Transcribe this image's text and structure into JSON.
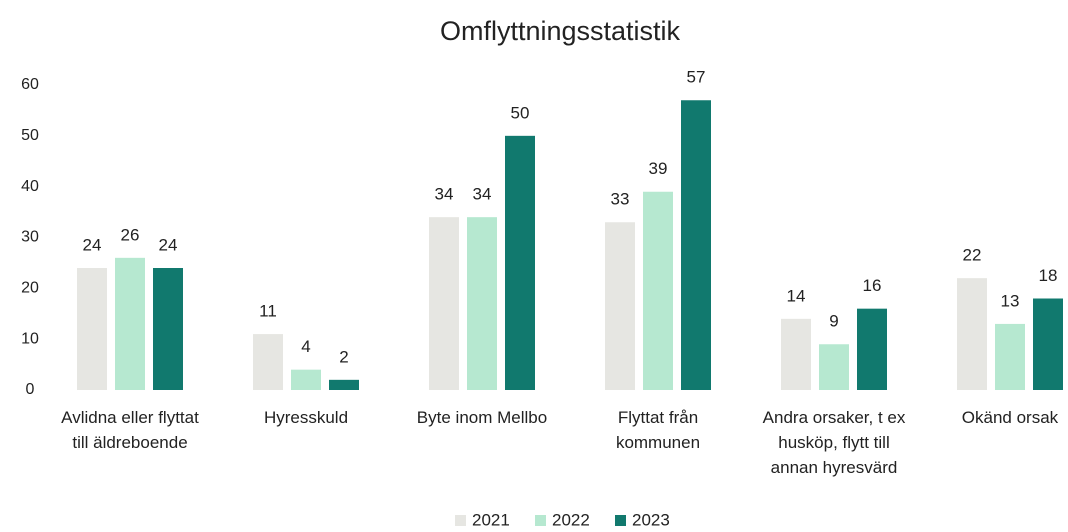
{
  "chart_data": {
    "type": "bar",
    "title": "Omflyttningsstatistik",
    "categories": [
      "Avlidna eller flyttat till äldreboende",
      "Hyresskuld",
      "Byte inom Mellbo",
      "Flyttat från kommunen",
      "Andra orsaker, t ex husköp, flytt till annan hyresvärd",
      "Okänd orsak"
    ],
    "series": [
      {
        "name": "2021",
        "color": "#e6e6e2",
        "values": [
          24,
          11,
          34,
          33,
          14,
          22
        ]
      },
      {
        "name": "2022",
        "color": "#b6e8d0",
        "values": [
          26,
          4,
          34,
          39,
          9,
          13
        ]
      },
      {
        "name": "2023",
        "color": "#11796e",
        "values": [
          24,
          2,
          50,
          57,
          16,
          18
        ]
      }
    ],
    "ylim": [
      0,
      60
    ],
    "yticks": [
      0,
      10,
      20,
      30,
      40,
      50,
      60
    ],
    "grid": false,
    "legend": "bottom"
  }
}
